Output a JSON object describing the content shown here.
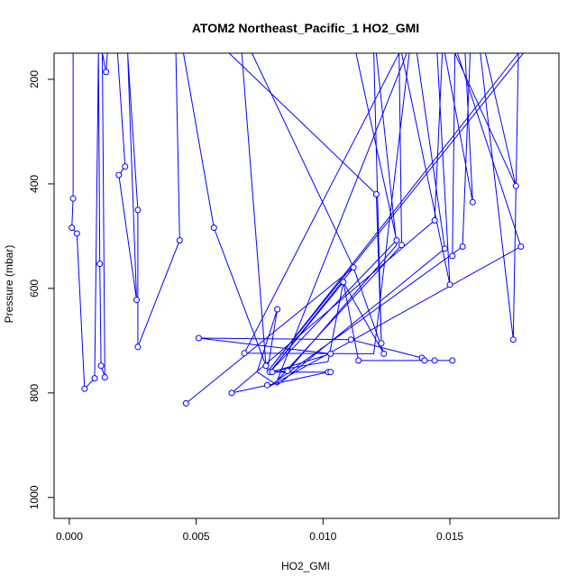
{
  "chart_data": {
    "type": "line",
    "title": "ATOM2 Northeast_Pacific_1 HO2_GMI",
    "xlabel": "HO2_GMI",
    "ylabel": "Pressure (mbar)",
    "xlim": [
      -0.0006,
      0.0193
    ],
    "ylim": [
      1040,
      150
    ],
    "y_reversed": true,
    "x_ticks": [
      0.0,
      0.005,
      0.01,
      0.015
    ],
    "x_tick_labels": [
      "0.000",
      "0.005",
      "0.010",
      "0.015"
    ],
    "y_ticks": [
      200,
      400,
      600,
      800,
      1000
    ],
    "y_tick_labels": [
      "200",
      "400",
      "600",
      "800",
      "1000"
    ],
    "grid": false,
    "series_color": "#0000ff",
    "series": [
      {
        "points": [
          [
            0.00015,
            150
          ],
          [
            0.00015,
            428
          ],
          [
            0.0001,
            484
          ],
          [
            0.0003,
            495
          ],
          [
            0.0006,
            792
          ],
          [
            0.001,
            772
          ],
          [
            0.00115,
            150
          ],
          [
            0.0012,
            553
          ],
          [
            0.00125,
            748
          ],
          [
            0.0014,
            770
          ],
          [
            0.0013,
            150
          ],
          [
            0.00145,
            186
          ],
          [
            0.0015,
            150
          ],
          [
            0.0019,
            150
          ],
          [
            0.0022,
            367
          ],
          [
            0.00195,
            383
          ],
          [
            0.00265,
            622
          ],
          [
            0.0023,
            150
          ],
          [
            0.0027,
            450
          ],
          [
            0.0027,
            632
          ],
          [
            0.0027,
            712
          ],
          [
            0.00435,
            508
          ],
          [
            0.0042,
            150
          ],
          [
            0.0045,
            150
          ],
          [
            0.0057,
            484
          ],
          [
            0.00775,
            748
          ],
          [
            0.0068,
            150
          ],
          [
            0.0063,
            150
          ],
          [
            0.0121,
            420
          ],
          [
            0.0123,
            705
          ],
          [
            0.012,
            150
          ],
          [
            0.0113,
            150
          ],
          [
            0.0129,
            508
          ],
          [
            0.0079,
            760
          ],
          [
            0.0112,
            560
          ],
          [
            0.0046,
            820
          ]
        ]
      },
      {
        "points": [
          [
            0.0072,
            150
          ],
          [
            0.0112,
            560
          ],
          [
            0.0124,
            725
          ],
          [
            0.0108,
            588
          ],
          [
            0.0079,
            760
          ],
          [
            0.0086,
            758
          ],
          [
            0.0129,
            517
          ],
          [
            0.0121,
            150
          ],
          [
            0.013,
            150
          ],
          [
            0.0131,
            517
          ],
          [
            0.0082,
            776
          ],
          [
            0.0133,
            150
          ],
          [
            0.0134,
            150
          ],
          [
            0.012,
            725
          ],
          [
            0.0069,
            724
          ],
          [
            0.013,
            150
          ],
          [
            0.0147,
            150
          ],
          [
            0.0144,
            470
          ],
          [
            0.0064,
            800
          ],
          [
            0.0102,
            760
          ],
          [
            0.0103,
            760
          ],
          [
            0.008,
            760
          ],
          [
            0.0103,
            725
          ],
          [
            0.0051,
            695
          ],
          [
            0.0111,
            698
          ],
          [
            0.0139,
            733
          ],
          [
            0.014,
            738
          ],
          [
            0.0144,
            738
          ],
          [
            0.0151,
            738
          ],
          [
            0.0114,
            738
          ],
          [
            0.0108,
            588
          ],
          [
            0.0102,
            740
          ],
          [
            0.0078,
            760
          ],
          [
            0.0082,
            640
          ],
          [
            0.0074,
            760
          ],
          [
            0.0082,
            785
          ],
          [
            0.0148,
            524
          ],
          [
            0.0137,
            150
          ],
          [
            0.0145,
            150
          ],
          [
            0.015,
            593
          ],
          [
            0.0131,
            150
          ],
          [
            0.0152,
            150
          ],
          [
            0.0151,
            538
          ],
          [
            0.0152,
            150
          ],
          [
            0.0156,
            150
          ],
          [
            0.0159,
            435
          ],
          [
            0.0148,
            150
          ],
          [
            0.0153,
            150
          ],
          [
            0.0178,
            520
          ],
          [
            0.0078,
            790
          ],
          [
            0.0155,
            520
          ],
          [
            0.0158,
            150
          ],
          [
            0.0177,
            150
          ],
          [
            0.0175,
            698
          ],
          [
            0.0162,
            150
          ],
          [
            0.0164,
            150
          ],
          [
            0.0176,
            404
          ],
          [
            0.0152,
            150
          ],
          [
            0.0179,
            150
          ],
          [
            0.0078,
            760
          ],
          [
            0.0177,
            150
          ]
        ]
      }
    ],
    "markers": [
      [
        0.00015,
        428
      ],
      [
        0.0001,
        484
      ],
      [
        0.0003,
        495
      ],
      [
        0.0006,
        792
      ],
      [
        0.001,
        772
      ],
      [
        0.0012,
        553
      ],
      [
        0.00125,
        748
      ],
      [
        0.0014,
        770
      ],
      [
        0.00145,
        186
      ],
      [
        0.0022,
        367
      ],
      [
        0.00195,
        383
      ],
      [
        0.00265,
        622
      ],
      [
        0.0027,
        450
      ],
      [
        0.0027,
        712
      ],
      [
        0.00435,
        508
      ],
      [
        0.0057,
        484
      ],
      [
        0.00775,
        748
      ],
      [
        0.0121,
        420
      ],
      [
        0.0123,
        705
      ],
      [
        0.0129,
        508
      ],
      [
        0.0131,
        517
      ],
      [
        0.0112,
        560
      ],
      [
        0.0108,
        588
      ],
      [
        0.0124,
        725
      ],
      [
        0.0144,
        470
      ],
      [
        0.0148,
        524
      ],
      [
        0.0151,
        538
      ],
      [
        0.015,
        593
      ],
      [
        0.0155,
        520
      ],
      [
        0.0159,
        435
      ],
      [
        0.0176,
        404
      ],
      [
        0.0178,
        520
      ],
      [
        0.0175,
        698
      ],
      [
        0.0082,
        640
      ],
      [
        0.0051,
        695
      ],
      [
        0.0069,
        724
      ],
      [
        0.0111,
        698
      ],
      [
        0.0103,
        725
      ],
      [
        0.0139,
        733
      ],
      [
        0.014,
        738
      ],
      [
        0.0144,
        738
      ],
      [
        0.0151,
        738
      ],
      [
        0.0114,
        738
      ],
      [
        0.0079,
        760
      ],
      [
        0.0086,
        758
      ],
      [
        0.0102,
        760
      ],
      [
        0.0103,
        760
      ],
      [
        0.008,
        760
      ],
      [
        0.0078,
        785
      ],
      [
        0.0064,
        800
      ],
      [
        0.0046,
        820
      ]
    ]
  }
}
